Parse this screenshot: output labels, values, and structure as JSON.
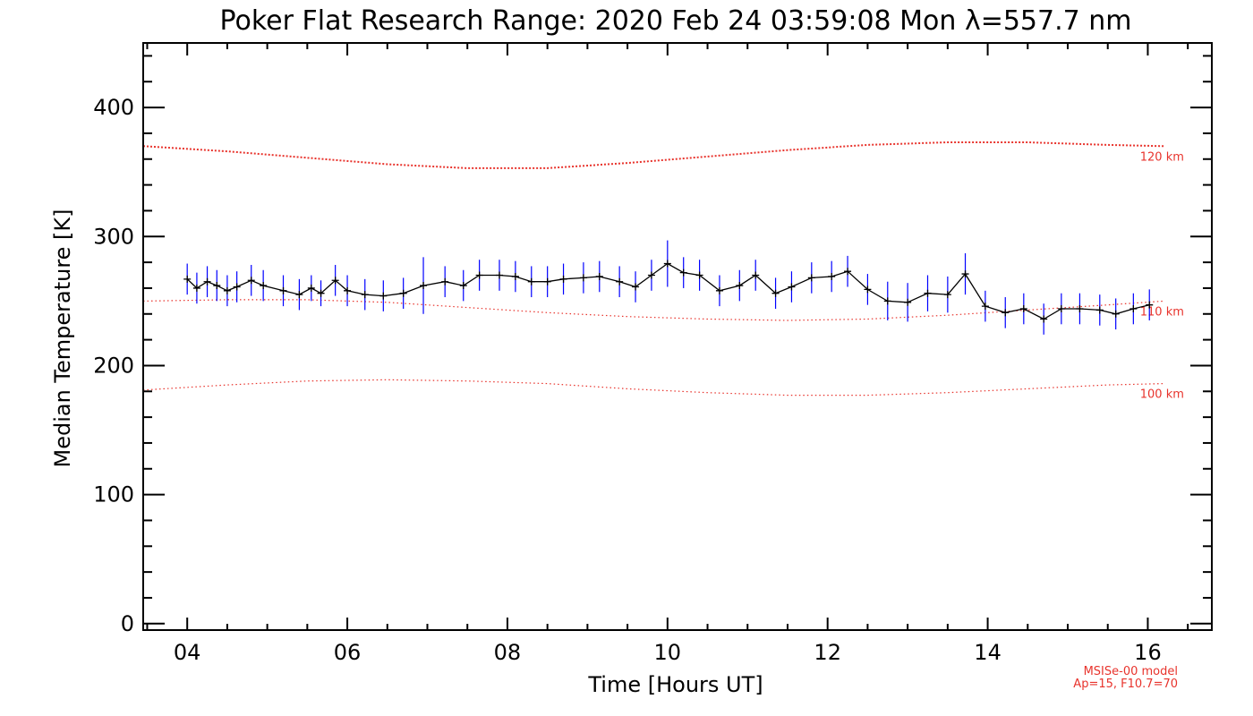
{
  "chart_data": {
    "type": "line",
    "title": "Poker Flat Research Range: 2020 Feb 24 03:59:08 Mon λ=557.7 nm",
    "xlabel": "Time [Hours UT]",
    "ylabel": "Median Temperature [K]",
    "xlim": [
      3.45,
      16.8
    ],
    "ylim": [
      -5,
      450
    ],
    "x_ticks": [
      4,
      6,
      8,
      10,
      12,
      14,
      16
    ],
    "x_tick_labels": [
      "04",
      "06",
      "08",
      "10",
      "12",
      "14",
      "16"
    ],
    "y_ticks": [
      0,
      100,
      200,
      300,
      400
    ],
    "y_tick_labels": [
      "0",
      "100",
      "200",
      "300",
      "400"
    ],
    "grid": false,
    "colors": {
      "measured": "#000000",
      "error_bars": "#0000ff",
      "model": "#e8332c"
    },
    "series": [
      {
        "x": [
          4.0,
          4.12,
          4.25,
          4.37,
          4.5,
          4.62,
          4.8,
          4.95,
          5.2,
          5.4,
          5.55,
          5.67,
          5.85,
          6.0,
          6.22,
          6.45,
          6.7,
          6.95,
          7.22,
          7.45,
          7.65,
          7.9,
          8.1,
          8.3,
          8.5,
          8.7,
          8.95,
          9.15,
          9.4,
          9.6,
          9.8,
          10.0,
          10.2,
          10.4,
          10.65,
          10.9,
          11.1,
          11.35,
          11.55,
          11.8,
          12.05,
          12.25,
          12.5,
          12.75,
          13.0,
          13.25,
          13.5,
          13.72,
          13.97,
          14.22,
          14.45,
          14.7,
          14.92,
          15.15,
          15.4,
          15.6,
          15.82,
          16.02
        ],
        "values": [
          267,
          260,
          265,
          262,
          258,
          261,
          266,
          262,
          258,
          255,
          260,
          256,
          266,
          258,
          255,
          254,
          256,
          262,
          265,
          262,
          270,
          270,
          269,
          265,
          265,
          267,
          268,
          269,
          265,
          261,
          270,
          279,
          272,
          270,
          258,
          262,
          270,
          256,
          261,
          268,
          269,
          273,
          259,
          250,
          249,
          256,
          255,
          271,
          246,
          241,
          244,
          236,
          244,
          244,
          243,
          240,
          244,
          247
        ],
        "errors": [
          12,
          12,
          12,
          12,
          12,
          12,
          12,
          12,
          12,
          12,
          10,
          10,
          12,
          12,
          12,
          12,
          12,
          22,
          12,
          12,
          12,
          12,
          12,
          12,
          12,
          12,
          12,
          12,
          12,
          12,
          12,
          18,
          12,
          12,
          12,
          12,
          12,
          12,
          12,
          12,
          12,
          12,
          12,
          15,
          15,
          14,
          14,
          16,
          12,
          12,
          12,
          12,
          12,
          12,
          12,
          12,
          12,
          12
        ]
      },
      {
        "name": "120 km",
        "x": [
          3.45,
          4.5,
          5.5,
          6.5,
          7.5,
          8.5,
          9.5,
          10.5,
          11.5,
          12.5,
          13.5,
          14.5,
          15.5,
          16.2
        ],
        "values": [
          370,
          366,
          361,
          356,
          353,
          353,
          357,
          362,
          367,
          371,
          373,
          373,
          371,
          370
        ]
      },
      {
        "name": "110 km",
        "x": [
          3.45,
          4.5,
          5.5,
          6.5,
          7.5,
          8.5,
          9.5,
          10.5,
          11.5,
          12.5,
          13.5,
          14.5,
          15.5,
          16.2
        ],
        "values": [
          250,
          251,
          251,
          249,
          245,
          241,
          238,
          236,
          235,
          236,
          239,
          243,
          247,
          250
        ]
      },
      {
        "name": "100 km",
        "x": [
          3.45,
          4.5,
          5.5,
          6.5,
          7.5,
          8.5,
          9.5,
          10.5,
          11.5,
          12.5,
          13.5,
          14.5,
          15.5,
          16.2
        ],
        "values": [
          181,
          185,
          188,
          189,
          188,
          186,
          182,
          179,
          177,
          177,
          179,
          182,
          185,
          186
        ]
      }
    ],
    "annotations": [
      "MSISe-00 model",
      "Ap=15, F10.7=70"
    ]
  }
}
